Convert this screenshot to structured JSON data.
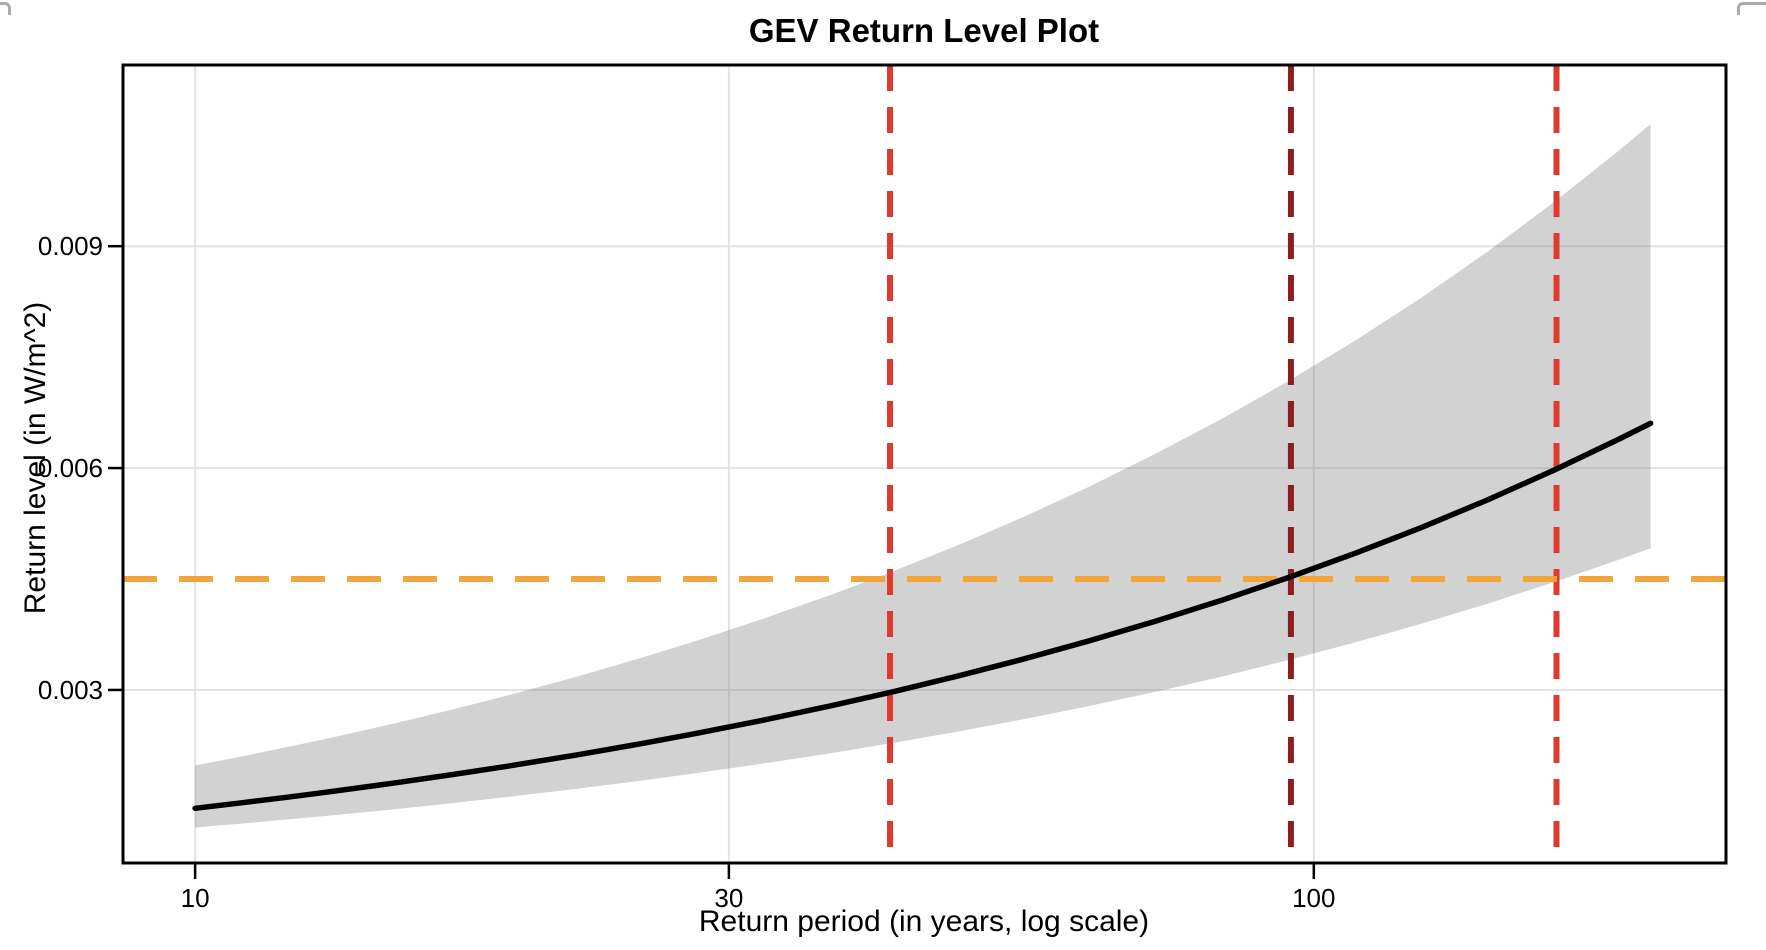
{
  "chart_data": {
    "type": "line",
    "title": "GEV Return Level Plot",
    "xlabel": "Return period (in years, log scale)",
    "ylabel": "Return level (in W/m^2)",
    "x_scale": "log",
    "y_scale": "linear",
    "xlim": [
      8.62,
      233.6
    ],
    "ylim": [
      0.00066,
      0.01145
    ],
    "grid": true,
    "x_ticks": [
      10,
      30,
      100
    ],
    "x_tick_labels": [
      "10",
      "30",
      "100"
    ],
    "y_ticks": [
      0.003,
      0.006,
      0.009
    ],
    "y_tick_labels": [
      "0.003",
      "0.006",
      "0.009"
    ],
    "x": [
      10,
      11,
      12,
      13,
      15,
      17,
      19,
      22,
      25,
      28,
      32,
      37,
      42,
      48,
      55,
      63,
      72,
      83,
      95,
      109,
      125,
      143,
      164,
      188,
      200
    ],
    "series": [
      {
        "name": "return-level-estimate",
        "color": "#000000",
        "style": "solid",
        "line_width": 5.5,
        "values": [
          0.0014,
          0.001474,
          0.001543,
          0.001611,
          0.001737,
          0.001856,
          0.001968,
          0.002125,
          0.002272,
          0.00241,
          0.002583,
          0.002785,
          0.002973,
          0.003186,
          0.003417,
          0.003664,
          0.003924,
          0.00422,
          0.004522,
          0.00485,
          0.005201,
          0.00557,
          0.005972,
          0.006401,
          0.006605
        ]
      },
      {
        "name": "confidence-upper",
        "color": "none",
        "style": "band-edge",
        "values": [
          0.001978,
          0.0021,
          0.002217,
          0.002328,
          0.00254,
          0.002737,
          0.002924,
          0.003185,
          0.00343,
          0.00366,
          0.003949,
          0.004285,
          0.0046,
          0.004953,
          0.005339,
          0.00575,
          0.006183,
          0.006677,
          0.00718,
          0.007728,
          0.008312,
          0.008927,
          0.009597,
          0.010312,
          0.010652
        ]
      },
      {
        "name": "confidence-lower",
        "color": "none",
        "style": "band-edge",
        "values": [
          0.00114,
          0.001193,
          0.001244,
          0.001293,
          0.001384,
          0.00147,
          0.001552,
          0.001666,
          0.001772,
          0.001873,
          0.001998,
          0.002145,
          0.002282,
          0.002436,
          0.002604,
          0.002783,
          0.002971,
          0.003186,
          0.003405,
          0.003644,
          0.003898,
          0.004166,
          0.004458,
          0.004769,
          0.004917
        ]
      }
    ],
    "band": {
      "name": "confidence-band",
      "upper": "confidence-upper",
      "lower": "confidence-lower",
      "fill": "rgba(121,121,121,0.335)"
    },
    "reference_lines": [
      {
        "name": "target-level",
        "orientation": "horizontal",
        "value": 0.0045,
        "color": "#F0A43A",
        "style": "dashed",
        "width": 6,
        "dash": [
          34,
          22
        ]
      },
      {
        "name": "return-period-ci-lower",
        "orientation": "vertical",
        "value": 41.8,
        "color": "#E0392D",
        "style": "dashed",
        "width": 6,
        "dash": [
          26,
          16
        ]
      },
      {
        "name": "return-period-estimate",
        "orientation": "vertical",
        "value": 95.4,
        "color": "#8B1E1E",
        "style": "dashed",
        "width": 6,
        "dash": [
          26,
          16
        ]
      },
      {
        "name": "return-period-ci-upper",
        "orientation": "vertical",
        "value": 164.8,
        "color": "#E0392D",
        "style": "dashed",
        "width": 6,
        "dash": [
          26,
          16
        ]
      }
    ],
    "colors": {
      "background": "#FFFFFF",
      "panel_border": "#000000",
      "gridline": "#E3E3E3",
      "band_visible_gray": "#D2D2D2",
      "curve": "#000000",
      "horizontal_ref": "#F0A43A",
      "vertical_ref_red": "#E0392D",
      "vertical_ref_dark_red": "#8B1E1E"
    },
    "legend": null
  }
}
